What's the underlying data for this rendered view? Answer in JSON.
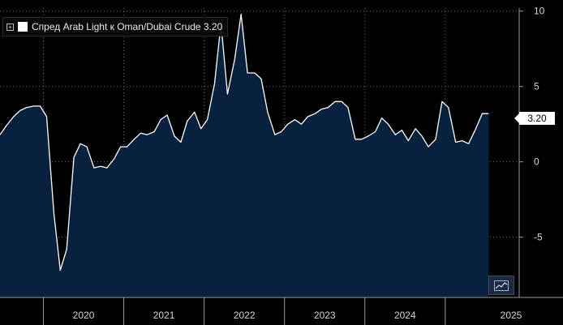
{
  "chart_data": {
    "type": "area",
    "title": "Спред Arab Light к Oman/Dubai Crude 3.20",
    "series": [
      {
        "name": "Спред Arab Light к Oman/Dubai Crude",
        "last_value_label": "3.20",
        "x": [
          2019.46,
          2019.54,
          2019.63,
          2019.71,
          2019.79,
          2019.88,
          2019.96,
          2020.04,
          2020.13,
          2020.21,
          2020.29,
          2020.38,
          2020.46,
          2020.54,
          2020.63,
          2020.71,
          2020.79,
          2020.88,
          2020.96,
          2021.04,
          2021.13,
          2021.21,
          2021.29,
          2021.38,
          2021.46,
          2021.54,
          2021.63,
          2021.71,
          2021.79,
          2021.88,
          2021.96,
          2022.04,
          2022.13,
          2022.21,
          2022.29,
          2022.38,
          2022.46,
          2022.54,
          2022.63,
          2022.71,
          2022.79,
          2022.88,
          2022.96,
          2023.04,
          2023.13,
          2023.21,
          2023.29,
          2023.38,
          2023.46,
          2023.54,
          2023.63,
          2023.71,
          2023.79,
          2023.88,
          2023.96,
          2024.04,
          2024.13,
          2024.21,
          2024.29,
          2024.38,
          2024.46,
          2024.54,
          2024.63,
          2024.71,
          2024.79,
          2024.88,
          2024.96,
          2025.04,
          2025.13,
          2025.21,
          2025.29,
          2025.38,
          2025.46,
          2025.54
        ],
        "values": [
          1.8,
          2.4,
          3.0,
          3.4,
          3.6,
          3.7,
          3.7,
          3.0,
          -3.4,
          -7.2,
          -5.8,
          0.3,
          1.2,
          1.0,
          -0.4,
          -0.3,
          -0.4,
          0.2,
          1.0,
          1.0,
          1.5,
          1.9,
          1.8,
          2.0,
          2.8,
          3.1,
          1.7,
          1.3,
          2.7,
          3.3,
          2.2,
          2.8,
          5.2,
          9.2,
          4.5,
          6.8,
          9.8,
          5.9,
          5.9,
          5.5,
          3.3,
          1.8,
          2.0,
          2.5,
          2.8,
          2.5,
          3.0,
          3.2,
          3.5,
          3.6,
          4.0,
          4.0,
          3.6,
          1.5,
          1.5,
          1.7,
          2.0,
          2.9,
          2.5,
          1.8,
          2.1,
          1.4,
          2.2,
          1.7,
          1.0,
          1.5,
          4.0,
          3.6,
          1.3,
          1.4,
          1.2,
          2.2,
          3.2,
          3.2
        ]
      }
    ],
    "xlim": [
      2019.46,
      2025.92
    ],
    "ylim": [
      -9.0,
      10.2
    ],
    "yticks": [
      10,
      5,
      0,
      -5
    ],
    "ytick_labels": [
      "10",
      "5",
      "0",
      "-5"
    ],
    "xtick_labels": [
      "2020",
      "2021",
      "2022",
      "2023",
      "2024",
      "2025"
    ],
    "year_boundaries": [
      2020,
      2021,
      2022,
      2023,
      2024,
      2025
    ],
    "grid": true,
    "legend_position": "top-left"
  },
  "colors": {
    "background": "#000000",
    "area_fill": "#07213f",
    "line": "#ffffff",
    "grid": "#6b6b6b"
  },
  "icons": {
    "legend_toggle": "plus-square-icon",
    "chart_type": "line-chart-icon"
  }
}
